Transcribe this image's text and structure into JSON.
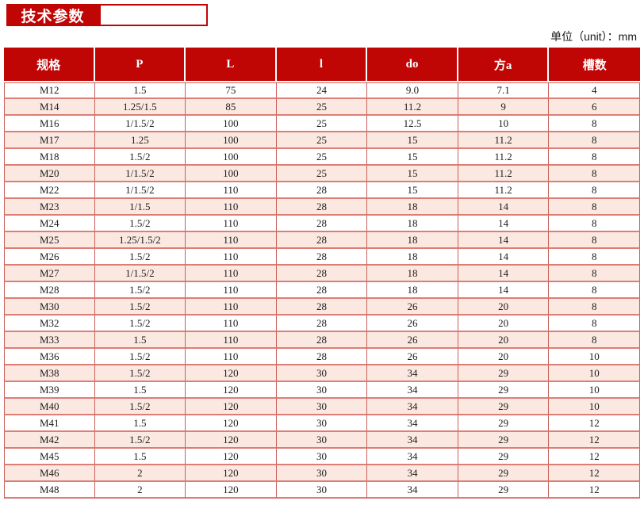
{
  "header": {
    "title": "技术参数",
    "unit_label": "单位（unit）：mm"
  },
  "colors": {
    "brand_red": "#c00505",
    "grid_red": "#c96059",
    "grid_red_light": "#dd7d76",
    "row_stripe_pink": "#fbe9e1",
    "body_text": "#1c1c1c"
  },
  "table": {
    "columns": [
      "规格",
      "P",
      "L",
      "l",
      "do",
      "方a",
      "槽数"
    ],
    "rows": [
      [
        "M12",
        "1.5",
        "75",
        "24",
        "9.0",
        "7.1",
        "4"
      ],
      [
        "M14",
        "1.25/1.5",
        "85",
        "25",
        "11.2",
        "9",
        "6"
      ],
      [
        "M16",
        "1/1.5/2",
        "100",
        "25",
        "12.5",
        "10",
        "8"
      ],
      [
        "M17",
        "1.25",
        "100",
        "25",
        "15",
        "11.2",
        "8"
      ],
      [
        "M18",
        "1.5/2",
        "100",
        "25",
        "15",
        "11.2",
        "8"
      ],
      [
        "M20",
        "1/1.5/2",
        "100",
        "25",
        "15",
        "11.2",
        "8"
      ],
      [
        "M22",
        "1/1.5/2",
        "110",
        "28",
        "15",
        "11.2",
        "8"
      ],
      [
        "M23",
        "1/1.5",
        "110",
        "28",
        "18",
        "14",
        "8"
      ],
      [
        "M24",
        "1.5/2",
        "110",
        "28",
        "18",
        "14",
        "8"
      ],
      [
        "M25",
        "1.25/1.5/2",
        "110",
        "28",
        "18",
        "14",
        "8"
      ],
      [
        "M26",
        "1.5/2",
        "110",
        "28",
        "18",
        "14",
        "8"
      ],
      [
        "M27",
        "1/1.5/2",
        "110",
        "28",
        "18",
        "14",
        "8"
      ],
      [
        "M28",
        "1.5/2",
        "110",
        "28",
        "18",
        "14",
        "8"
      ],
      [
        "M30",
        "1.5/2",
        "110",
        "28",
        "26",
        "20",
        "8"
      ],
      [
        "M32",
        "1.5/2",
        "110",
        "28",
        "26",
        "20",
        "8"
      ],
      [
        "M33",
        "1.5",
        "110",
        "28",
        "26",
        "20",
        "8"
      ],
      [
        "M36",
        "1.5/2",
        "110",
        "28",
        "26",
        "20",
        "10"
      ],
      [
        "M38",
        "1.5/2",
        "120",
        "30",
        "34",
        "29",
        "10"
      ],
      [
        "M39",
        "1.5",
        "120",
        "30",
        "34",
        "29",
        "10"
      ],
      [
        "M40",
        "1.5/2",
        "120",
        "30",
        "34",
        "29",
        "10"
      ],
      [
        "M41",
        "1.5",
        "120",
        "30",
        "34",
        "29",
        "12"
      ],
      [
        "M42",
        "1.5/2",
        "120",
        "30",
        "34",
        "29",
        "12"
      ],
      [
        "M45",
        "1.5",
        "120",
        "30",
        "34",
        "29",
        "12"
      ],
      [
        "M46",
        "2",
        "120",
        "30",
        "34",
        "29",
        "12"
      ],
      [
        "M48",
        "2",
        "120",
        "30",
        "34",
        "29",
        "12"
      ]
    ]
  }
}
